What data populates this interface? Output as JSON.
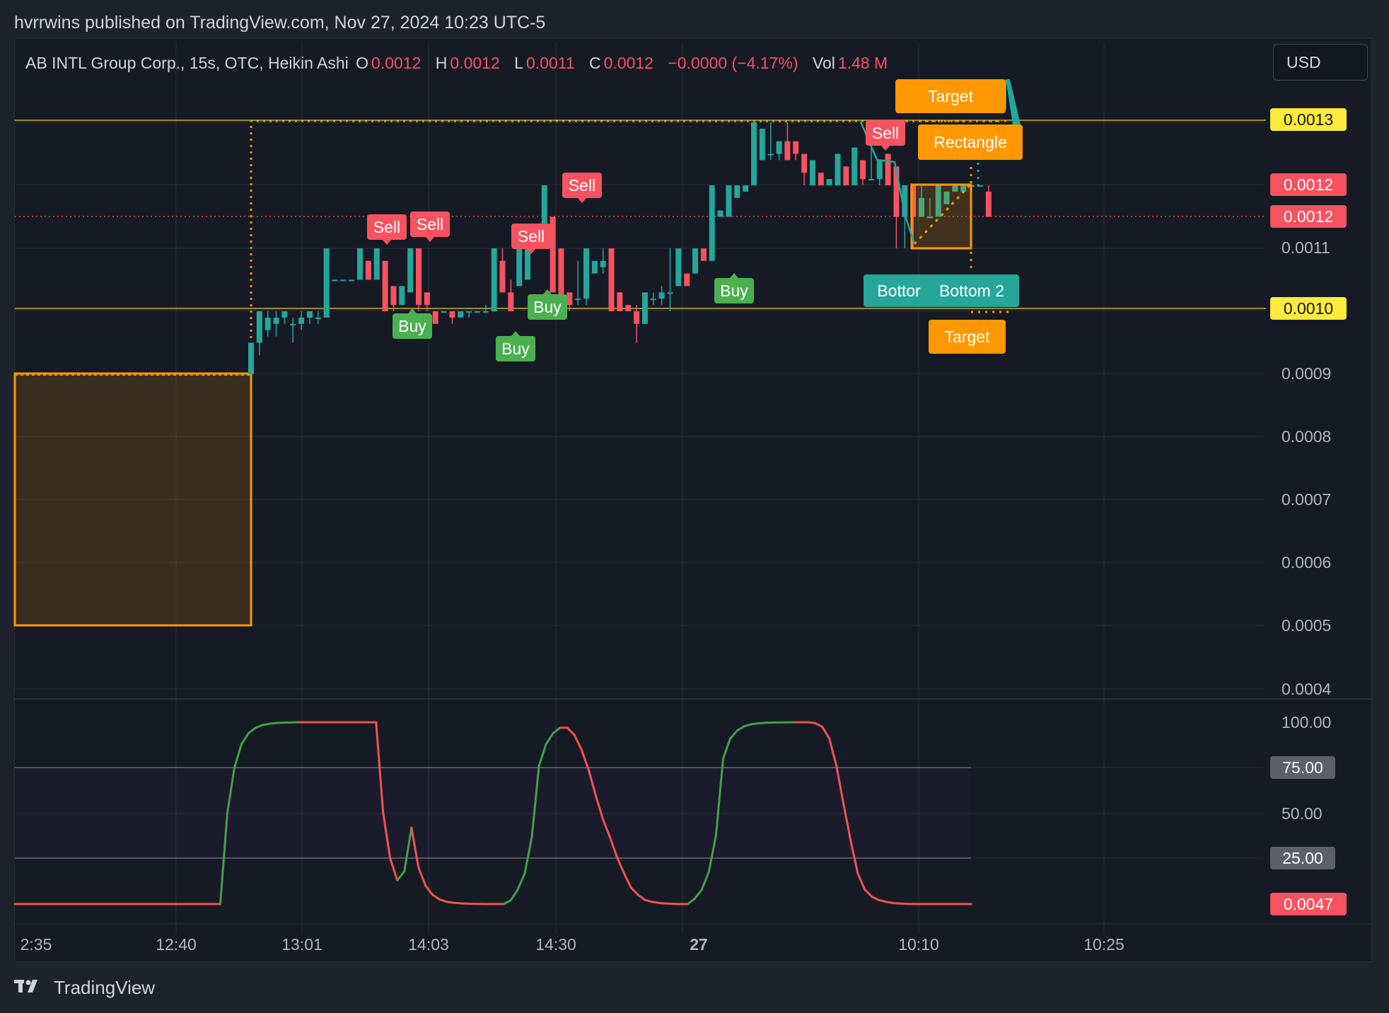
{
  "publisher": "hvrrwins published on TradingView.com, Nov 27, 2024 10:23 UTC-5",
  "legend": {
    "symbol": "AB INTL Group Corp., 15s, OTC, Heikin Ashi",
    "open_label": "O",
    "open": "0.0012",
    "high_label": "H",
    "high": "0.0012",
    "low_label": "L",
    "low": "0.0011",
    "close_label": "C",
    "close": "0.0012",
    "change": "−0.0000 (−4.17%)",
    "vol_label": "Vol",
    "vol": "1.48 M"
  },
  "currency": "USD",
  "footer": {
    "logo": "TradingView",
    "logo_icon": "tradingview-logo-icon"
  },
  "colors": {
    "bg": "#161a25",
    "up": "#26a69a",
    "upbright": "#22ab94",
    "down": "#f7525f",
    "orange": "#ff9800",
    "yellow": "#ffeb3b",
    "grid": "#2a2e39",
    "rsi_up": "#43a047",
    "rsi_down": "#ef5350"
  },
  "chart_data": [
    {
      "type": "candlestick",
      "style": "Heikin Ashi",
      "ylim": [
        0.0004,
        0.00135
      ],
      "y_ticks": [
        "0.0011",
        "0.0009",
        "0.0008",
        "0.0007",
        "0.0006",
        "0.0005",
        "0.0004"
      ],
      "x_ticks": [
        "2:35",
        "12:40",
        "13:01",
        "14:03",
        "14:30",
        "27",
        "10:10",
        "10:25"
      ],
      "price_tags": [
        {
          "text": "0.0013",
          "kind": "yellow",
          "value": 0.0013
        },
        {
          "text": "0.0012",
          "kind": "red",
          "value": 0.0012
        },
        {
          "text": "0.0012",
          "kind": "red",
          "value": 0.00115
        },
        {
          "text": "0.0010",
          "kind": "yellow",
          "value": 0.001
        }
      ],
      "horizontal_lines": [
        0.0013,
        0.001
      ],
      "candles": [
        {
          "o": 0.0009,
          "h": 0.00095,
          "l": 0.0009,
          "c": 0.00095
        },
        {
          "o": 0.00095,
          "h": 0.001,
          "l": 0.00093,
          "c": 0.001
        },
        {
          "o": 0.00097,
          "h": 0.001,
          "l": 0.00096,
          "c": 0.00099
        },
        {
          "o": 0.00098,
          "h": 0.001,
          "l": 0.00096,
          "c": 0.00099
        },
        {
          "o": 0.00099,
          "h": 0.001,
          "l": 0.00098,
          "c": 0.001
        },
        {
          "o": 0.00098,
          "h": 0.00099,
          "l": 0.00095,
          "c": 0.00098
        },
        {
          "o": 0.00098,
          "h": 0.001,
          "l": 0.00097,
          "c": 0.00099
        },
        {
          "o": 0.00099,
          "h": 0.001,
          "l": 0.00098,
          "c": 0.001
        },
        {
          "o": 0.00099,
          "h": 0.001,
          "l": 0.00098,
          "c": 0.00099
        },
        {
          "o": 0.00099,
          "h": 0.0011,
          "l": 0.00099,
          "c": 0.0011
        },
        {
          "o": 0.00105,
          "h": 0.00105,
          "l": 0.00105,
          "c": 0.00105
        },
        {
          "o": 0.00105,
          "h": 0.00105,
          "l": 0.00105,
          "c": 0.00105
        },
        {
          "o": 0.00105,
          "h": 0.00105,
          "l": 0.00105,
          "c": 0.00105
        },
        {
          "o": 0.00105,
          "h": 0.0011,
          "l": 0.00105,
          "c": 0.0011
        },
        {
          "o": 0.00108,
          "h": 0.00108,
          "l": 0.00105,
          "c": 0.00105
        },
        {
          "o": 0.00105,
          "h": 0.0011,
          "l": 0.00105,
          "c": 0.0011
        },
        {
          "o": 0.00108,
          "h": 0.00108,
          "l": 0.001,
          "c": 0.001
        },
        {
          "o": 0.00104,
          "h": 0.00104,
          "l": 0.001,
          "c": 0.00101
        },
        {
          "o": 0.00101,
          "h": 0.00104,
          "l": 0.00101,
          "c": 0.00104
        },
        {
          "o": 0.00103,
          "h": 0.0011,
          "l": 0.00103,
          "c": 0.0011
        },
        {
          "o": 0.0011,
          "h": 0.0011,
          "l": 0.001,
          "c": 0.00101
        },
        {
          "o": 0.00103,
          "h": 0.00103,
          "l": 0.001,
          "c": 0.00101
        },
        {
          "o": 0.001,
          "h": 0.001,
          "l": 0.00098,
          "c": 0.00098
        },
        {
          "o": 0.001,
          "h": 0.001,
          "l": 0.001,
          "c": 0.001
        },
        {
          "o": 0.001,
          "h": 0.001,
          "l": 0.00098,
          "c": 0.00099
        },
        {
          "o": 0.00099,
          "h": 0.001,
          "l": 0.00099,
          "c": 0.001
        },
        {
          "o": 0.001,
          "h": 0.001,
          "l": 0.00099,
          "c": 0.001
        },
        {
          "o": 0.001,
          "h": 0.001,
          "l": 0.001,
          "c": 0.001
        },
        {
          "o": 0.001,
          "h": 0.00101,
          "l": 0.001,
          "c": 0.001
        },
        {
          "o": 0.001,
          "h": 0.0011,
          "l": 0.001,
          "c": 0.0011
        },
        {
          "o": 0.00108,
          "h": 0.0011,
          "l": 0.00103,
          "c": 0.00103
        },
        {
          "o": 0.00103,
          "h": 0.00105,
          "l": 0.001,
          "c": 0.001
        },
        {
          "o": 0.00104,
          "h": 0.0011,
          "l": 0.00104,
          "c": 0.0011
        },
        {
          "o": 0.00105,
          "h": 0.00112,
          "l": 0.00105,
          "c": 0.00112
        },
        {
          "o": 0.00111,
          "h": 0.00111,
          "l": 0.00111,
          "c": 0.00111
        },
        {
          "o": 0.00111,
          "h": 0.0012,
          "l": 0.00111,
          "c": 0.0012
        },
        {
          "o": 0.00115,
          "h": 0.00115,
          "l": 0.00103,
          "c": 0.00103
        },
        {
          "o": 0.0011,
          "h": 0.0011,
          "l": 0.001,
          "c": 0.001
        },
        {
          "o": 0.00103,
          "h": 0.00103,
          "l": 0.001,
          "c": 0.00101
        },
        {
          "o": 0.00102,
          "h": 0.00108,
          "l": 0.00101,
          "c": 0.00102
        },
        {
          "o": 0.00102,
          "h": 0.0011,
          "l": 0.00101,
          "c": 0.0011
        },
        {
          "o": 0.00106,
          "h": 0.00108,
          "l": 0.00106,
          "c": 0.00108
        },
        {
          "o": 0.00107,
          "h": 0.0011,
          "l": 0.00106,
          "c": 0.00108
        },
        {
          "o": 0.0011,
          "h": 0.0011,
          "l": 0.001,
          "c": 0.001
        },
        {
          "o": 0.00103,
          "h": 0.00103,
          "l": 0.001,
          "c": 0.001
        },
        {
          "o": 0.00101,
          "h": 0.00101,
          "l": 0.001,
          "c": 0.001
        },
        {
          "o": 0.001,
          "h": 0.00101,
          "l": 0.00095,
          "c": 0.00098
        },
        {
          "o": 0.00098,
          "h": 0.00103,
          "l": 0.00098,
          "c": 0.00103
        },
        {
          "o": 0.00102,
          "h": 0.00103,
          "l": 0.00101,
          "c": 0.00102
        },
        {
          "o": 0.00102,
          "h": 0.00104,
          "l": 0.00101,
          "c": 0.00103
        },
        {
          "o": 0.00103,
          "h": 0.0011,
          "l": 0.001,
          "c": 0.00103
        },
        {
          "o": 0.00104,
          "h": 0.0011,
          "l": 0.00104,
          "c": 0.0011
        },
        {
          "o": 0.00106,
          "h": 0.00106,
          "l": 0.00104,
          "c": 0.00104
        },
        {
          "o": 0.00106,
          "h": 0.0011,
          "l": 0.00106,
          "c": 0.0011
        },
        {
          "o": 0.0011,
          "h": 0.0011,
          "l": 0.00108,
          "c": 0.00108
        },
        {
          "o": 0.00108,
          "h": 0.0012,
          "l": 0.00108,
          "c": 0.0012
        },
        {
          "o": 0.00115,
          "h": 0.00116,
          "l": 0.00115,
          "c": 0.00116
        },
        {
          "o": 0.00115,
          "h": 0.0012,
          "l": 0.00115,
          "c": 0.0012
        },
        {
          "o": 0.00118,
          "h": 0.0012,
          "l": 0.00118,
          "c": 0.0012
        },
        {
          "o": 0.00119,
          "h": 0.0012,
          "l": 0.00119,
          "c": 0.0012
        },
        {
          "o": 0.0012,
          "h": 0.0013,
          "l": 0.0012,
          "c": 0.0013
        },
        {
          "o": 0.00124,
          "h": 0.00129,
          "l": 0.00124,
          "c": 0.00129
        },
        {
          "o": 0.00125,
          "h": 0.0013,
          "l": 0.00124,
          "c": 0.00125
        },
        {
          "o": 0.00125,
          "h": 0.00127,
          "l": 0.00124,
          "c": 0.00127
        },
        {
          "o": 0.00127,
          "h": 0.0013,
          "l": 0.00124,
          "c": 0.00124
        },
        {
          "o": 0.00127,
          "h": 0.00127,
          "l": 0.00124,
          "c": 0.00125
        },
        {
          "o": 0.00125,
          "h": 0.00125,
          "l": 0.0012,
          "c": 0.00122
        },
        {
          "o": 0.0012,
          "h": 0.00124,
          "l": 0.0012,
          "c": 0.00124
        },
        {
          "o": 0.00122,
          "h": 0.00122,
          "l": 0.0012,
          "c": 0.0012
        },
        {
          "o": 0.0012,
          "h": 0.00121,
          "l": 0.0012,
          "c": 0.00121
        },
        {
          "o": 0.0012,
          "h": 0.00125,
          "l": 0.0012,
          "c": 0.00125
        },
        {
          "o": 0.00123,
          "h": 0.00123,
          "l": 0.0012,
          "c": 0.0012
        },
        {
          "o": 0.0012,
          "h": 0.00126,
          "l": 0.0012,
          "c": 0.00126
        },
        {
          "o": 0.00124,
          "h": 0.00124,
          "l": 0.0012,
          "c": 0.00121
        },
        {
          "o": 0.00121,
          "h": 0.0013,
          "l": 0.00121,
          "c": 0.00121
        },
        {
          "o": 0.00121,
          "h": 0.00124,
          "l": 0.0012,
          "c": 0.00124
        },
        {
          "o": 0.00125,
          "h": 0.00125,
          "l": 0.0012,
          "c": 0.0012
        },
        {
          "o": 0.00123,
          "h": 0.00123,
          "l": 0.0011,
          "c": 0.00115
        },
        {
          "o": 0.00115,
          "h": 0.0012,
          "l": 0.0011,
          "c": 0.0012
        },
        {
          "o": 0.0012,
          "h": 0.0012,
          "l": 0.0011,
          "c": 0.00115
        },
        {
          "o": 0.00115,
          "h": 0.0012,
          "l": 0.00115,
          "c": 0.00118
        },
        {
          "o": 0.00115,
          "h": 0.00118,
          "l": 0.00115,
          "c": 0.00115
        },
        {
          "o": 0.00115,
          "h": 0.0012,
          "l": 0.00115,
          "c": 0.0012
        },
        {
          "o": 0.00117,
          "h": 0.00119,
          "l": 0.00117,
          "c": 0.00119
        },
        {
          "o": 0.00119,
          "h": 0.0012,
          "l": 0.00119,
          "c": 0.0012
        },
        {
          "o": 0.00119,
          "h": 0.0012,
          "l": 0.00119,
          "c": 0.0012
        },
        {
          "o": 0.0012,
          "h": 0.0012,
          "l": 0.0012,
          "c": 0.0012
        },
        {
          "o": 0.0012,
          "h": 0.0012,
          "l": 0.0012,
          "c": 0.0012
        },
        {
          "o": 0.00119,
          "h": 0.0012,
          "l": 0.00115,
          "c": 0.00115
        }
      ],
      "signals": [
        {
          "label": "Sell",
          "kind": "sell",
          "candle": 17
        },
        {
          "label": "Sell",
          "kind": "sell",
          "candle": 23
        },
        {
          "label": "Sell",
          "kind": "sell",
          "candle": 35
        },
        {
          "label": "Sell",
          "kind": "sell",
          "candle": 42
        },
        {
          "label": "Sell",
          "kind": "sell",
          "candle": 77
        },
        {
          "label": "Buy",
          "kind": "buy",
          "candle": 20
        },
        {
          "label": "Buy",
          "kind": "buy",
          "candle": 34
        },
        {
          "label": "Buy",
          "kind": "buy",
          "candle": 40
        },
        {
          "label": "Buy",
          "kind": "buy",
          "candle": 54
        }
      ],
      "annotations": [
        {
          "text": "Target",
          "kind": "orange"
        },
        {
          "text": "Target",
          "kind": "teal-partial",
          "shown": "get"
        },
        {
          "text": "Rectangle",
          "kind": "orange"
        },
        {
          "text": "Bottom 2",
          "kind": "teal",
          "shown": "Bottor"
        },
        {
          "text": "Bottom 2",
          "kind": "teal"
        },
        {
          "text": "Target",
          "kind": "orange"
        }
      ]
    },
    {
      "type": "line",
      "ylim": [
        0,
        100
      ],
      "y_ticks": [
        "100.00",
        "50.00"
      ],
      "price_tags": [
        {
          "text": "75.00",
          "kind": "gray",
          "value": 75
        },
        {
          "text": "25.00",
          "kind": "gray",
          "value": 25
        },
        {
          "text": "0.0047",
          "kind": "red",
          "value": 0.0047
        }
      ],
      "partial_tick": "00",
      "series": [
        {
          "values": [
            0.0047,
            0.0047,
            0.0047,
            0.0047,
            0.0047,
            0.0047,
            0.0047,
            0.0047,
            0.0047,
            0.0047,
            0.0047,
            0.0047,
            0.0047,
            0.0047,
            0.0047,
            0.0047,
            0.0047,
            0.0047,
            0.0047,
            0.0047,
            0.0047,
            0.0047,
            0.0047,
            0.0047,
            0.0047,
            0.0047,
            0.0047,
            0.0047,
            0.0047,
            0.0047,
            50,
            75,
            88,
            94,
            97,
            98.5,
            99.2,
            99.6,
            99.8,
            99.9,
            100,
            100,
            100,
            100,
            100,
            100,
            100,
            100,
            100,
            100,
            100,
            100,
            50,
            25,
            13,
            18,
            42,
            20,
            10,
            5,
            2.5,
            1.2,
            0.7,
            0.4,
            0.2,
            0.1,
            0.05,
            0.02,
            0.0047,
            0.0047,
            2,
            8,
            17,
            37,
            76,
            88,
            94,
            97,
            97,
            93,
            85,
            74,
            60,
            47,
            37,
            26,
            17,
            9,
            5,
            2.2,
            1.2,
            0.6,
            0.3,
            0.1,
            0.0047,
            0.0047,
            3,
            8,
            18,
            38,
            80,
            91,
            95.5,
            97.8,
            98.9,
            99.4,
            99.7,
            99.85,
            99.9,
            99.95,
            100,
            100,
            100,
            99.5,
            97.5,
            91,
            76,
            55,
            35,
            17,
            8,
            4,
            2.2,
            1.2,
            0.6,
            0.3,
            0.1,
            0.05,
            0.02,
            0.0047,
            0.0047,
            0.0047,
            0.0047,
            0.0047,
            0.0047,
            0.0047
          ]
        }
      ]
    }
  ]
}
